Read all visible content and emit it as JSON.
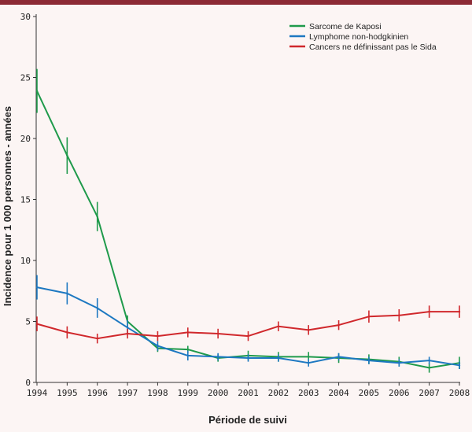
{
  "chart_data": {
    "type": "line",
    "title": "",
    "xlabel": "Période de suivi",
    "ylabel": "Incidence pour 1 000 personnes - années",
    "x": [
      "1994",
      "1995",
      "1996",
      "1997",
      "1998",
      "1999",
      "2000",
      "2001",
      "2002",
      "2003",
      "2004",
      "2005",
      "2006",
      "2007",
      "2008"
    ],
    "ylim": [
      0,
      30
    ],
    "yticks": [
      0,
      5,
      10,
      15,
      20,
      25,
      30
    ],
    "grid": false,
    "legend_position": "top-right",
    "series": [
      {
        "name": "Sarcome de Kaposi",
        "color": "#1f9a4b",
        "values": [
          23.9,
          18.6,
          13.6,
          5.0,
          2.8,
          2.7,
          2.0,
          2.2,
          2.1,
          2.1,
          2.0,
          1.9,
          1.7,
          1.2,
          1.6
        ],
        "err": [
          1.8,
          1.5,
          1.2,
          0.5,
          0.3,
          0.3,
          0.3,
          0.4,
          0.4,
          0.4,
          0.4,
          0.4,
          0.4,
          0.4,
          0.5
        ]
      },
      {
        "name": "Lymphome non-hodgkinien",
        "color": "#1d78c1",
        "values": [
          7.8,
          7.3,
          6.1,
          4.5,
          3.0,
          2.2,
          2.1,
          2.0,
          2.0,
          1.6,
          2.1,
          1.8,
          1.6,
          1.8,
          1.4
        ],
        "err": [
          1.0,
          0.9,
          0.8,
          0.6,
          0.4,
          0.4,
          0.3,
          0.3,
          0.3,
          0.3,
          0.3,
          0.3,
          0.3,
          0.3,
          0.3
        ]
      },
      {
        "name": "Cancers ne définissant pas le Sida",
        "color": "#d0282c",
        "values": [
          4.8,
          4.1,
          3.6,
          4.0,
          3.8,
          4.1,
          4.0,
          3.8,
          4.6,
          4.3,
          4.7,
          5.4,
          5.5,
          5.8,
          5.8
        ],
        "err": [
          0.6,
          0.5,
          0.4,
          0.4,
          0.4,
          0.4,
          0.4,
          0.4,
          0.4,
          0.4,
          0.4,
          0.5,
          0.5,
          0.5,
          0.5
        ]
      }
    ]
  }
}
